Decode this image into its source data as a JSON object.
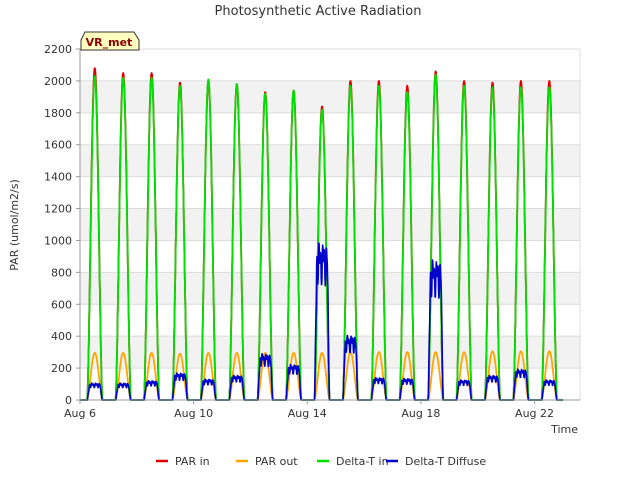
{
  "chart_data": {
    "type": "line",
    "title": "Photosynthetic Active Radiation",
    "xlabel": "Time",
    "ylabel": "PAR (umol/m2/s)",
    "site_tag": "VR_met",
    "ylim": [
      0,
      2200
    ],
    "yticks": [
      0,
      200,
      400,
      600,
      800,
      1000,
      1200,
      1400,
      1600,
      1800,
      2000,
      2200
    ],
    "xlim": [
      6.0,
      23.6
    ],
    "xticks": [
      {
        "value": 6,
        "label": "Aug 6"
      },
      {
        "value": 10,
        "label": "Aug 10"
      },
      {
        "value": 14,
        "label": "Aug 14"
      },
      {
        "value": 18,
        "label": "Aug 18"
      },
      {
        "value": 22,
        "label": "Aug 22"
      }
    ],
    "days": [
      6,
      7,
      8,
      9,
      10,
      11,
      12,
      13,
      14,
      15,
      16,
      17,
      18,
      19,
      20,
      21,
      22
    ],
    "series": [
      {
        "name": "PAR in",
        "color": "#dd0000",
        "daily_peak": [
          2080,
          2050,
          2050,
          1990,
          2000,
          1980,
          1930,
          1940,
          1840,
          2000,
          2000,
          1970,
          2060,
          2000,
          1990,
          2000,
          2000
        ]
      },
      {
        "name": "PAR out",
        "color": "#ffa500",
        "daily_peak": [
          295,
          295,
          295,
          290,
          295,
          295,
          295,
          295,
          295,
          300,
          300,
          300,
          300,
          300,
          305,
          305,
          305
        ]
      },
      {
        "name": "Delta-T in",
        "color": "#00e000",
        "daily_peak": [
          2030,
          2020,
          2020,
          1970,
          2010,
          1980,
          1920,
          1940,
          1820,
          1970,
          1970,
          1930,
          2040,
          1970,
          1960,
          1960,
          1960
        ]
      },
      {
        "name": "Delta-T Diffuse",
        "color": "#0000cc",
        "daily_peak": [
          110,
          110,
          125,
          175,
          135,
          160,
          300,
          230,
          1020,
          420,
          145,
          140,
          910,
          130,
          160,
          200,
          130
        ]
      }
    ]
  }
}
